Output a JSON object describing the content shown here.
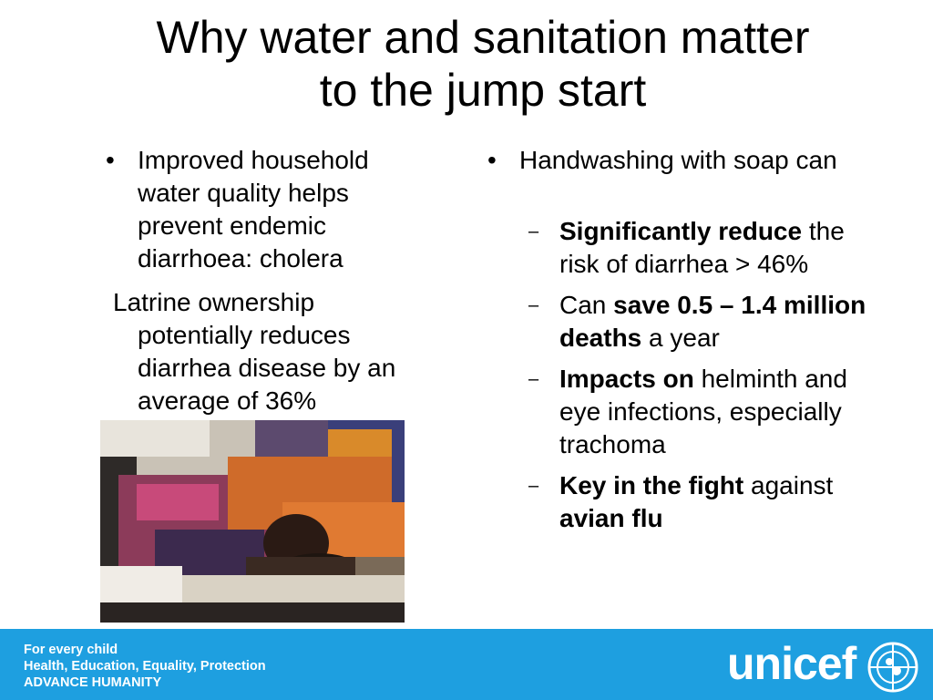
{
  "slide": {
    "title_line1": "Why water and sanitation matter",
    "title_line2": "to the jump start"
  },
  "left": {
    "bullet1": "Improved household water quality helps prevent endemic diarrhoea: cholera",
    "paragraph2": "Latrine ownership potentially reduces diarrhea disease by an average of 36%"
  },
  "right": {
    "bullet1": "Handwashing with soap can",
    "sub1_bold": "Significantly reduce",
    "sub1_rest": " the risk of diarrhea > 46%",
    "sub2_pre": "Can ",
    "sub2_bold": "save 0.5 – 1.4 million deaths",
    "sub2_rest": " a year",
    "sub3_bold": "Impacts on",
    "sub3_rest": " helminth and eye infections, especially trachoma",
    "sub4_bold1": "Key in the fight",
    "sub4_mid": " against ",
    "sub4_bold2": "avian flu"
  },
  "bullet_glyph": "•",
  "dash_glyph": "–",
  "footer": {
    "line1": "For every child",
    "line2": "Health, Education, Equality, Protection",
    "line3": "ADVANCE HUMANITY",
    "logo": "unicef",
    "color": "#1e9fe0"
  },
  "photo": {
    "subject": "child-lying-on-hospital-bed"
  }
}
